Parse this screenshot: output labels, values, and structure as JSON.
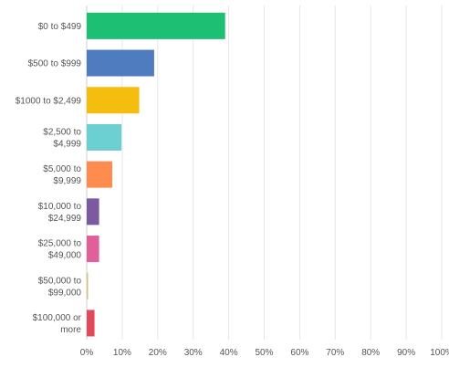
{
  "chart_data": {
    "type": "bar",
    "orientation": "horizontal",
    "categories": [
      [
        "$0 to $499"
      ],
      [
        "$500 to $999"
      ],
      [
        "$1000 to $2,499"
      ],
      [
        "$2,500 to",
        "$4,999"
      ],
      [
        "$5,000 to",
        "$9,999"
      ],
      [
        "$10,000 to",
        "$24,999"
      ],
      [
        "$25,000 to",
        "$49,000"
      ],
      [
        "$50,000 to",
        "$99,000"
      ],
      [
        "$100,000 or",
        "more"
      ]
    ],
    "values": [
      39,
      19,
      14.8,
      9.8,
      7.2,
      3.5,
      3.5,
      0.3,
      2.2
    ],
    "colors": [
      "#1dbf73",
      "#4f7bbf",
      "#f5bd0e",
      "#6ccfd1",
      "#ff8c4f",
      "#7b5aa0",
      "#e0609a",
      "#d8c27a",
      "#e04a5a"
    ],
    "xlim": [
      0,
      100
    ],
    "xticks": [
      0,
      10,
      20,
      30,
      40,
      50,
      60,
      70,
      80,
      90,
      100
    ],
    "tick_suffix": "%",
    "grid": true,
    "title": "",
    "xlabel": "",
    "ylabel": ""
  }
}
